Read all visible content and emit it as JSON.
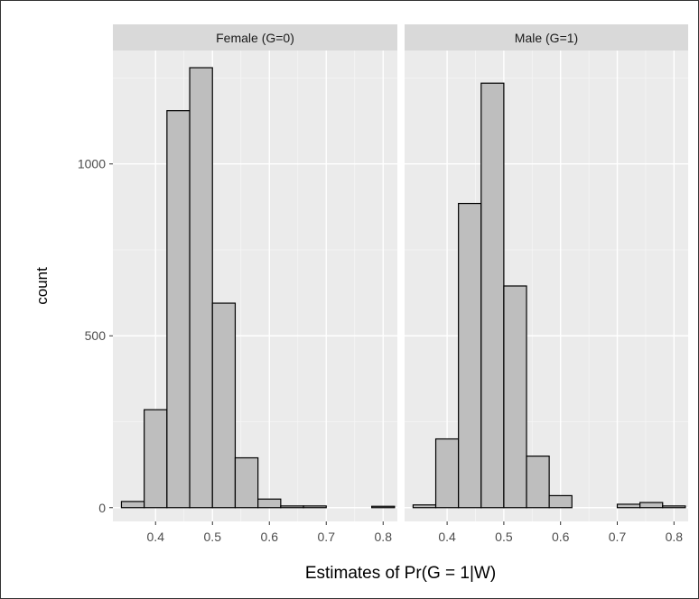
{
  "chart_data": {
    "type": "bar",
    "subtype": "faceted-histogram",
    "xlabel": "Estimates of Pr(G = 1|W)",
    "ylabel": "count",
    "xlim": [
      0.325,
      0.825
    ],
    "ylim": [
      -40,
      1330
    ],
    "x_ticks": [
      0.4,
      0.5,
      0.6,
      0.7,
      0.8
    ],
    "x_tick_labels": [
      "0.4",
      "0.5",
      "0.6",
      "0.7",
      "0.8"
    ],
    "y_ticks": [
      0,
      500,
      1000
    ],
    "y_tick_labels": [
      "0",
      "500",
      "1000"
    ],
    "grid": true,
    "bin_edges": [
      0.34,
      0.38,
      0.42,
      0.46,
      0.5,
      0.54,
      0.58,
      0.62,
      0.66,
      0.7,
      0.74,
      0.78,
      0.82
    ],
    "bar_fill": "#bebebe",
    "bar_stroke": "#000000",
    "panel_background": "#ebebeb",
    "strip_background": "#d9d9d9",
    "panels": [
      {
        "strip_label": "Female (G=0)",
        "values": [
          18,
          285,
          1155,
          1280,
          595,
          145,
          25,
          5,
          5,
          0,
          0,
          4
        ]
      },
      {
        "strip_label": "Male (G=1)",
        "values": [
          8,
          200,
          885,
          1235,
          645,
          150,
          35,
          0,
          0,
          10,
          15,
          5
        ]
      }
    ]
  }
}
